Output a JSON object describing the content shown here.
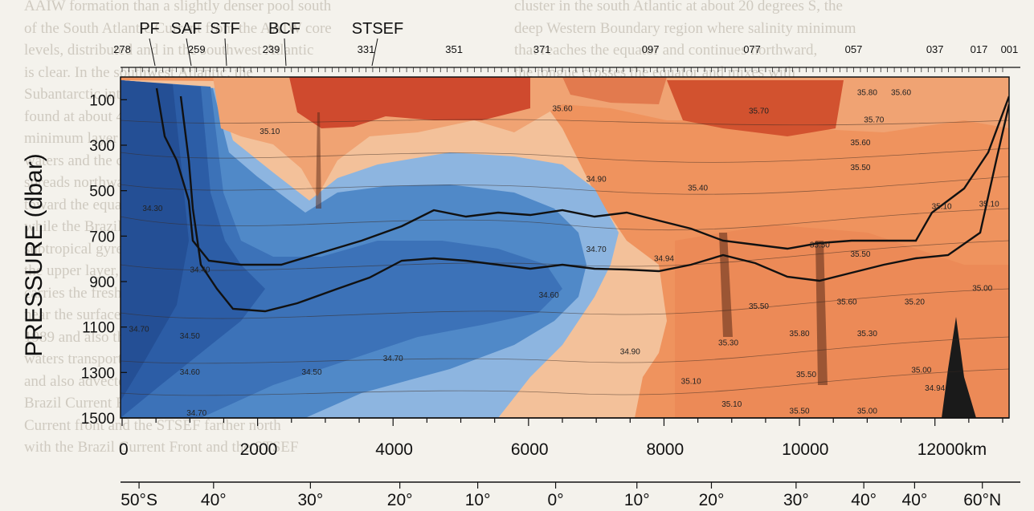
{
  "chart_data": {
    "type": "heatmap",
    "description_kind": "ocean salinity section",
    "ylabel": "PRESSURE (dbar)",
    "ylim": [
      0,
      1500
    ],
    "y_inverted": true,
    "y_ticks": [
      "100",
      "300",
      "500",
      "700",
      "900",
      "1100",
      "1300",
      "1500"
    ],
    "xlim": [
      0,
      13000
    ],
    "x_ticks": [
      "0",
      "2000",
      "4000",
      "6000",
      "8000",
      "10000",
      "12000km"
    ],
    "latitude_ticks": [
      "50°S",
      "40°",
      "30°",
      "20°",
      "10°",
      "0°",
      "10°",
      "20°",
      "30°",
      "40°",
      "40°",
      "60°N"
    ],
    "station_labels": [
      "278",
      "259",
      "239",
      "331",
      "351",
      "371",
      "097",
      "077",
      "057",
      "037",
      "017",
      "001"
    ],
    "fronts": [
      "PF",
      "SAF",
      "STF",
      "BCF",
      "STSEF"
    ],
    "contour_labels": [
      {
        "text": "35.10",
        "x": 2180,
        "p": 250
      },
      {
        "text": "35.60",
        "x": 6500,
        "p": 150
      },
      {
        "text": "35.80",
        "x": 11000,
        "p": 80
      },
      {
        "text": "35.60",
        "x": 11500,
        "p": 80
      },
      {
        "text": "35.70",
        "x": 9400,
        "p": 160
      },
      {
        "text": "35.70",
        "x": 11100,
        "p": 200
      },
      {
        "text": "35.60",
        "x": 10900,
        "p": 300
      },
      {
        "text": "35.50",
        "x": 10900,
        "p": 410
      },
      {
        "text": "34.90",
        "x": 7000,
        "p": 460
      },
      {
        "text": "35.40",
        "x": 8500,
        "p": 500
      },
      {
        "text": "35.10",
        "x": 12100,
        "p": 580
      },
      {
        "text": "35.10",
        "x": 12800,
        "p": 570
      },
      {
        "text": "34.30",
        "x": 450,
        "p": 590
      },
      {
        "text": "34.70",
        "x": 7000,
        "p": 770
      },
      {
        "text": "34.94",
        "x": 8000,
        "p": 810
      },
      {
        "text": "35.50",
        "x": 10300,
        "p": 750
      },
      {
        "text": "35.50",
        "x": 10900,
        "p": 790
      },
      {
        "text": "34.40",
        "x": 1150,
        "p": 860
      },
      {
        "text": "34.60",
        "x": 6300,
        "p": 970
      },
      {
        "text": "35.50",
        "x": 9400,
        "p": 1020
      },
      {
        "text": "35.60",
        "x": 10700,
        "p": 1000
      },
      {
        "text": "35.20",
        "x": 11700,
        "p": 1000
      },
      {
        "text": "35.00",
        "x": 12700,
        "p": 940
      },
      {
        "text": "34.70",
        "x": 250,
        "p": 1120
      },
      {
        "text": "34.50",
        "x": 1000,
        "p": 1150
      },
      {
        "text": "35.30",
        "x": 8950,
        "p": 1180
      },
      {
        "text": "35.80",
        "x": 10000,
        "p": 1140
      },
      {
        "text": "35.30",
        "x": 11000,
        "p": 1140
      },
      {
        "text": "34.90",
        "x": 7500,
        "p": 1220
      },
      {
        "text": "34.60",
        "x": 1000,
        "p": 1310
      },
      {
        "text": "34.50",
        "x": 2800,
        "p": 1310
      },
      {
        "text": "34.70",
        "x": 4000,
        "p": 1250
      },
      {
        "text": "35.10",
        "x": 8400,
        "p": 1350
      },
      {
        "text": "35.50",
        "x": 10100,
        "p": 1320
      },
      {
        "text": "35.10",
        "x": 9000,
        "p": 1450
      },
      {
        "text": "35.50",
        "x": 10000,
        "p": 1480
      },
      {
        "text": "35.00",
        "x": 11800,
        "p": 1300
      },
      {
        "text": "34.94",
        "x": 12000,
        "p": 1380
      },
      {
        "text": "35.00",
        "x": 11000,
        "p": 1480
      },
      {
        "text": "34.70",
        "x": 1100,
        "p": 1490
      }
    ],
    "colors": {
      "deep_blue": "#2d5fa8",
      "mid_blue": "#4f86c6",
      "light_blue": "#8fb7e2",
      "peach": "#f3bf96",
      "orange": "#ee8e5a",
      "red": "#c9432a"
    }
  }
}
